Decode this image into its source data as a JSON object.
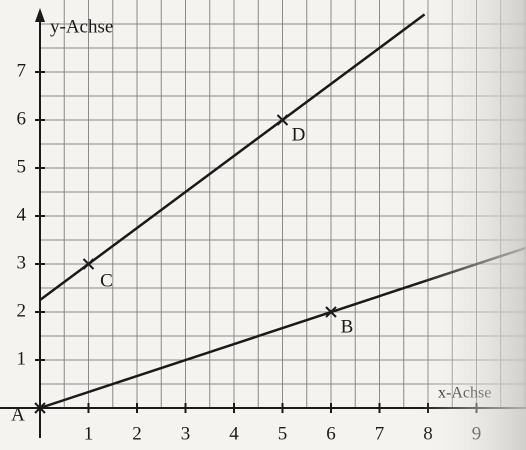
{
  "chart_data": {
    "type": "line",
    "x_label": "x-Achse",
    "y_label": "y-Achse",
    "xlim": [
      0,
      10
    ],
    "ylim": [
      0,
      8.3
    ],
    "xticks": [
      1,
      2,
      3,
      4,
      5,
      6,
      7,
      8,
      9
    ],
    "yticks": [
      1,
      2,
      3,
      4,
      5,
      6,
      7
    ],
    "grid": true,
    "grid_step": 0.5,
    "color": "#1a1a1a",
    "series": [
      {
        "x": [
          0,
          7.93
        ],
        "values": [
          2.25,
          8.2
        ]
      },
      {
        "x": [
          0,
          10
        ],
        "values": [
          0,
          3.33
        ]
      }
    ],
    "points": [
      {
        "label": "A",
        "x": 0,
        "y": 0
      },
      {
        "label": "B",
        "x": 6,
        "y": 2
      },
      {
        "label": "C",
        "x": 1,
        "y": 3
      },
      {
        "label": "D",
        "x": 5,
        "y": 6
      }
    ]
  }
}
